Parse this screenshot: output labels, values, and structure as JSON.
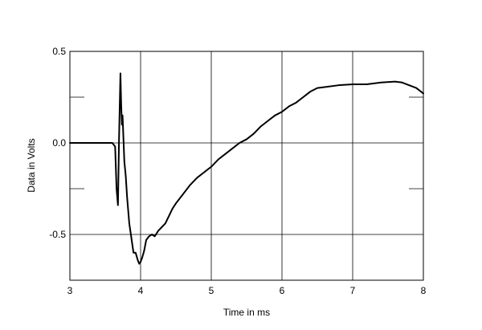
{
  "chart_data": {
    "type": "line",
    "title": "",
    "xlabel": "Time in ms",
    "ylabel": "Data in Volts",
    "xlim": [
      3,
      8
    ],
    "ylim": [
      -0.75,
      0.5
    ],
    "x_ticks": [
      3,
      4,
      5,
      6,
      7,
      8
    ],
    "x_tick_labels": [
      "3",
      "4",
      "5",
      "6",
      "7",
      "8"
    ],
    "y_ticks": [
      -0.75,
      -0.5,
      -0.25,
      0,
      0.25,
      0.5
    ],
    "y_tick_labels": [
      "",
      "-0.5",
      "",
      "0.0",
      "",
      "0.5"
    ],
    "grid": true,
    "legend": "none",
    "line_color": "#000000",
    "series": [
      {
        "x": [
          3.0,
          3.2,
          3.4,
          3.6,
          3.64,
          3.66,
          3.68,
          3.695,
          3.705,
          3.715,
          3.725,
          3.735,
          3.745,
          3.755,
          3.77,
          3.79,
          3.81,
          3.84,
          3.87,
          3.9,
          3.93,
          3.96,
          3.98,
          4.0,
          4.02,
          4.05,
          4.08,
          4.12,
          4.16,
          4.2,
          4.25,
          4.3,
          4.35,
          4.4,
          4.45,
          4.5,
          4.6,
          4.7,
          4.8,
          4.9,
          5.0,
          5.1,
          5.2,
          5.3,
          5.4,
          5.5,
          5.6,
          5.7,
          5.8,
          5.9,
          6.0,
          6.1,
          6.2,
          6.3,
          6.4,
          6.5,
          6.6,
          6.8,
          7.0,
          7.2,
          7.4,
          7.6,
          7.7,
          7.8,
          7.9,
          8.0
        ],
        "y": [
          0.0,
          0.0,
          0.0,
          0.0,
          -0.02,
          -0.25,
          -0.34,
          0.02,
          0.2,
          0.38,
          0.22,
          0.1,
          0.15,
          0.05,
          -0.1,
          -0.18,
          -0.3,
          -0.44,
          -0.52,
          -0.6,
          -0.6,
          -0.64,
          -0.66,
          -0.65,
          -0.63,
          -0.59,
          -0.53,
          -0.51,
          -0.5,
          -0.51,
          -0.48,
          -0.46,
          -0.44,
          -0.4,
          -0.36,
          -0.33,
          -0.28,
          -0.23,
          -0.19,
          -0.16,
          -0.13,
          -0.09,
          -0.06,
          -0.03,
          0.0,
          0.02,
          0.05,
          0.09,
          0.12,
          0.15,
          0.17,
          0.2,
          0.22,
          0.25,
          0.28,
          0.3,
          0.305,
          0.315,
          0.32,
          0.32,
          0.33,
          0.335,
          0.33,
          0.315,
          0.3,
          0.27
        ]
      }
    ]
  }
}
